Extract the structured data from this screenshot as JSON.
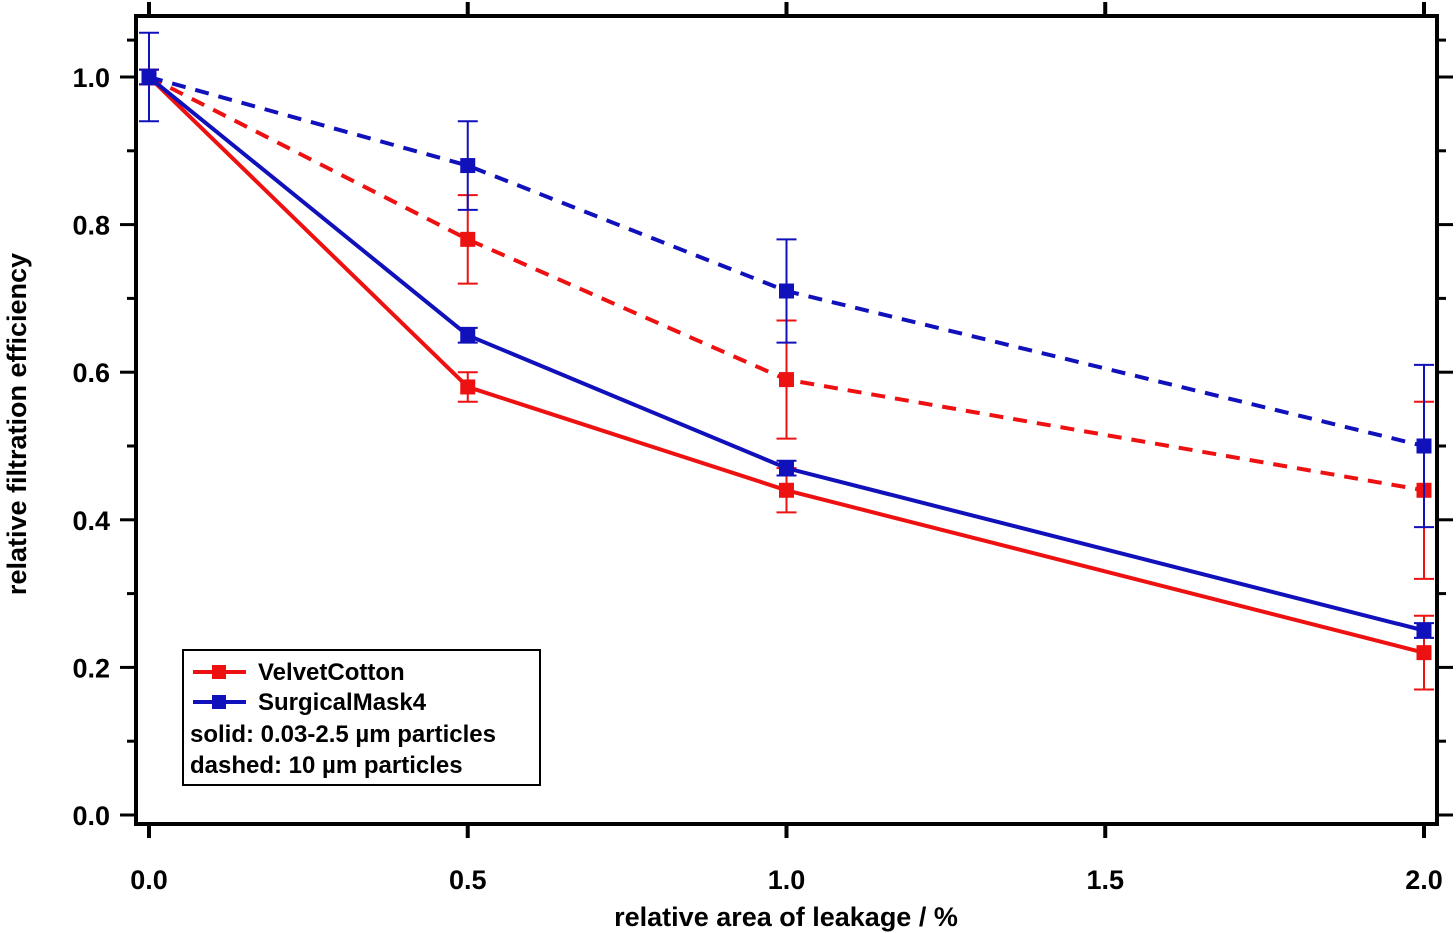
{
  "chart_data": {
    "type": "line",
    "xlabel": "relative area of leakage / %",
    "ylabel": "relative filtration efficiency",
    "xlim": [
      0.0,
      2.0
    ],
    "ylim": [
      0.0,
      1.0
    ],
    "x_ticks": [
      "0.0",
      "0.5",
      "1.0",
      "1.5",
      "2.0"
    ],
    "y_ticks": [
      "0.0",
      "0.2",
      "0.4",
      "0.6",
      "0.8",
      "1.0"
    ],
    "grid": false,
    "legend_position": "bottom-left",
    "series": [
      {
        "name": "VelvetCotton",
        "color": "#ee1111",
        "style": "solid",
        "x": [
          0.0,
          0.5,
          1.0,
          2.0
        ],
        "y": [
          1.0,
          0.58,
          0.44,
          0.22
        ],
        "err": [
          0.01,
          0.02,
          0.03,
          0.05
        ]
      },
      {
        "name": "SurgicalMask4",
        "color": "#1111bb",
        "style": "solid",
        "x": [
          0.0,
          0.5,
          1.0,
          2.0
        ],
        "y": [
          1.0,
          0.65,
          0.47,
          0.25
        ],
        "err": [
          0.01,
          0.01,
          0.01,
          0.01
        ]
      },
      {
        "color": "#ee1111",
        "style": "dashed",
        "x": [
          0.0,
          0.5,
          1.0,
          2.0
        ],
        "y": [
          1.0,
          0.78,
          0.59,
          0.44
        ],
        "err": [
          0.01,
          0.06,
          0.08,
          0.12
        ]
      },
      {
        "color": "#1111bb",
        "style": "dashed",
        "x": [
          0.0,
          0.5,
          1.0,
          2.0
        ],
        "y": [
          1.0,
          0.88,
          0.71,
          0.5
        ],
        "err": [
          0.06,
          0.06,
          0.07,
          0.11
        ]
      }
    ],
    "legend": {
      "entries": [
        {
          "label": "VelvetCotton",
          "color": "#ee1111"
        },
        {
          "label": "SurgicalMask4",
          "color": "#1111bb"
        }
      ],
      "notes": [
        "solid: 0.03-2.5 µm particles",
        "dashed: 10 µm particles"
      ]
    }
  }
}
